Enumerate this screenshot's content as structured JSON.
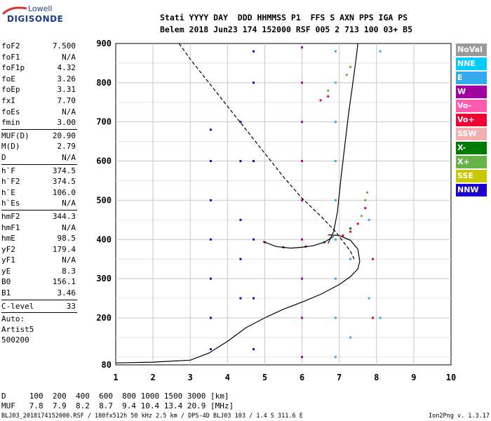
{
  "logo": {
    "line1": "Lowell",
    "line2": "DIGISONDE"
  },
  "header": {
    "line1": "Stati YYYY DAY  DDD HHMMSS P1  FFS S AXN PPS IGA PS",
    "line2": "Belem 2018 Jun23 174 152000 RSF 005 2 713 100 03+ B5"
  },
  "params": {
    "group1": [
      {
        "k": "foF2",
        "v": "7.500"
      },
      {
        "k": "foF1",
        "v": "N/A"
      },
      {
        "k": "foF1p",
        "v": "4.32"
      },
      {
        "k": "foE",
        "v": "3.26"
      },
      {
        "k": "foEp",
        "v": "3.31"
      },
      {
        "k": "fxI",
        "v": "7.70"
      },
      {
        "k": "foEs",
        "v": "N/A"
      },
      {
        "k": "fmin",
        "v": "3.00"
      }
    ],
    "group2": [
      {
        "k": "MUF(D)",
        "v": "20.90"
      },
      {
        "k": "M(D)",
        "v": "2.79"
      },
      {
        "k": "D",
        "v": "N/A"
      }
    ],
    "group3": [
      {
        "k": "h`F",
        "v": "374.5"
      },
      {
        "k": "h`F2",
        "v": "374.5"
      },
      {
        "k": "h`E",
        "v": "106.0"
      },
      {
        "k": "h`Es",
        "v": "N/A"
      }
    ],
    "group4": [
      {
        "k": "hmF2",
        "v": "344.3"
      },
      {
        "k": "hmF1",
        "v": "N/A"
      },
      {
        "k": "hmE",
        "v": "98.5"
      },
      {
        "k": "yF2",
        "v": "179.4"
      },
      {
        "k": "yF1",
        "v": "N/A"
      },
      {
        "k": "yE",
        "v": "8.3"
      },
      {
        "k": "B0",
        "v": "156.1"
      },
      {
        "k": "B1",
        "v": "3.46"
      }
    ],
    "group5": [
      {
        "k": "C-level",
        "v": "33"
      }
    ],
    "auto": [
      "Auto:",
      "Artist5",
      "500200"
    ]
  },
  "legend": [
    {
      "label": "NoVal",
      "color": "#9a9a9a"
    },
    {
      "label": "NNE",
      "color": "#00ccff"
    },
    {
      "label": "E",
      "color": "#33aaee"
    },
    {
      "label": "W",
      "color": "#a000a0"
    },
    {
      "label": "Vo-",
      "color": "#ff5ab0"
    },
    {
      "label": "Vo+",
      "color": "#ee0033"
    },
    {
      "label": "SSW",
      "color": "#f4b0b0"
    },
    {
      "label": "X-",
      "color": "#007a00"
    },
    {
      "label": "X+",
      "color": "#66b347"
    },
    {
      "label": "SSE",
      "color": "#c8c800"
    },
    {
      "label": "NNW",
      "color": "#1a00c8"
    }
  ],
  "chart_data": {
    "type": "scatter",
    "title": "",
    "xlabel": "",
    "ylabel": "",
    "xlim": [
      1,
      10
    ],
    "ylim": [
      80,
      900
    ],
    "x_ticks": [
      "1",
      "2",
      "3",
      "4",
      "5",
      "6",
      "7",
      "8",
      "9",
      "10"
    ],
    "y_ticks": [
      "80",
      "200",
      "300",
      "400",
      "500",
      "600",
      "700",
      "800",
      "900"
    ],
    "grid": true,
    "series": [
      {
        "name": "NNW",
        "points": [
          [
            3.55,
            120
          ],
          [
            3.55,
            200
          ],
          [
            3.55,
            300
          ],
          [
            3.55,
            400
          ],
          [
            3.55,
            500
          ],
          [
            3.55,
            600
          ],
          [
            3.55,
            680
          ],
          [
            4.35,
            250
          ],
          [
            4.35,
            350
          ],
          [
            4.35,
            450
          ],
          [
            4.35,
            600
          ],
          [
            4.35,
            700
          ],
          [
            4.7,
            120
          ],
          [
            4.7,
            250
          ],
          [
            4.7,
            400
          ],
          [
            4.7,
            600
          ],
          [
            4.7,
            800
          ],
          [
            4.7,
            880
          ]
        ]
      },
      {
        "name": "W",
        "points": [
          [
            6.0,
            100
          ],
          [
            6.0,
            200
          ],
          [
            6.0,
            300
          ],
          [
            6.0,
            400
          ],
          [
            6.0,
            500
          ],
          [
            6.0,
            600
          ],
          [
            6.0,
            700
          ],
          [
            6.0,
            800
          ],
          [
            6.0,
            890
          ],
          [
            5.0,
            393
          ],
          [
            5.5,
            380
          ],
          [
            6.1,
            382
          ]
        ]
      },
      {
        "name": "E",
        "points": [
          [
            6.9,
            100
          ],
          [
            6.9,
            200
          ],
          [
            6.9,
            300
          ],
          [
            6.9,
            400
          ],
          [
            6.9,
            500
          ],
          [
            6.9,
            600
          ],
          [
            6.9,
            700
          ],
          [
            6.9,
            800
          ],
          [
            6.9,
            880
          ],
          [
            7.3,
            150
          ],
          [
            7.3,
            350
          ],
          [
            7.8,
            250
          ],
          [
            7.8,
            450
          ],
          [
            8.1,
            200
          ],
          [
            8.1,
            880
          ]
        ]
      },
      {
        "name": "Vo+",
        "points": [
          [
            7.1,
            410
          ],
          [
            7.3,
            420
          ],
          [
            7.5,
            440
          ],
          [
            7.7,
            480
          ],
          [
            6.5,
            755
          ],
          [
            6.7,
            765
          ],
          [
            7.9,
            350
          ],
          [
            7.9,
            200
          ]
        ]
      },
      {
        "name": "X+",
        "points": [
          [
            7.6,
            460
          ],
          [
            7.7,
            500
          ],
          [
            7.75,
            520
          ],
          [
            7.2,
            820
          ],
          [
            7.3,
            840
          ],
          [
            6.7,
            780
          ]
        ]
      },
      {
        "name": "X-",
        "points": [
          [
            6.6,
            393
          ],
          [
            7.3,
            428
          ]
        ]
      }
    ],
    "curves": [
      {
        "name": "profile",
        "style": "solid",
        "points": [
          [
            1.0,
            85
          ],
          [
            2.0,
            87
          ],
          [
            3.0,
            92
          ],
          [
            3.5,
            110
          ],
          [
            4.0,
            140
          ],
          [
            4.5,
            175
          ],
          [
            5.0,
            200
          ],
          [
            5.5,
            222
          ],
          [
            6.0,
            240
          ],
          [
            6.5,
            260
          ],
          [
            7.0,
            285
          ],
          [
            7.3,
            305
          ],
          [
            7.5,
            325
          ],
          [
            7.55,
            345
          ],
          [
            7.5,
            375
          ],
          [
            7.3,
            398
          ],
          [
            7.0,
            410
          ],
          [
            6.7,
            412
          ]
        ]
      },
      {
        "name": "profile-upper",
        "style": "solid",
        "points": [
          [
            6.7,
            390
          ],
          [
            6.85,
            420
          ],
          [
            6.95,
            470
          ],
          [
            7.05,
            560
          ],
          [
            7.15,
            640
          ],
          [
            7.25,
            720
          ],
          [
            7.35,
            790
          ],
          [
            7.45,
            860
          ],
          [
            7.5,
            900
          ]
        ]
      },
      {
        "name": "E-trace",
        "style": "solid",
        "points": [
          [
            4.95,
            395
          ],
          [
            5.3,
            382
          ],
          [
            5.7,
            378
          ],
          [
            6.0,
            380
          ],
          [
            6.3,
            384
          ],
          [
            6.6,
            393
          ],
          [
            6.85,
            408
          ]
        ]
      },
      {
        "name": "model",
        "style": "dashed",
        "points": [
          [
            2.7,
            900
          ],
          [
            3.0,
            860
          ],
          [
            3.5,
            800
          ],
          [
            4.0,
            740
          ],
          [
            4.5,
            680
          ],
          [
            5.0,
            620
          ],
          [
            5.5,
            560
          ],
          [
            6.0,
            505
          ],
          [
            6.5,
            460
          ],
          [
            6.9,
            420
          ],
          [
            7.1,
            395
          ],
          [
            7.3,
            370
          ],
          [
            7.4,
            350
          ]
        ]
      }
    ]
  },
  "muf_table": {
    "line1": "D     100  200  400  600  800 1000 1500 3000 [km]",
    "line2": "MUF   7.8  7.9  8.2  8.7  9.4 10.4 13.4 20.9 [MHz]"
  },
  "footer": {
    "left": "BLJ03_2018174152000.RSF / 180fx512h 50 kHz 2.5 km / DPS-4D BLJ03 103 / 1.4 S 311.6 E",
    "right": "Ion2Png v. 1.3.17"
  }
}
